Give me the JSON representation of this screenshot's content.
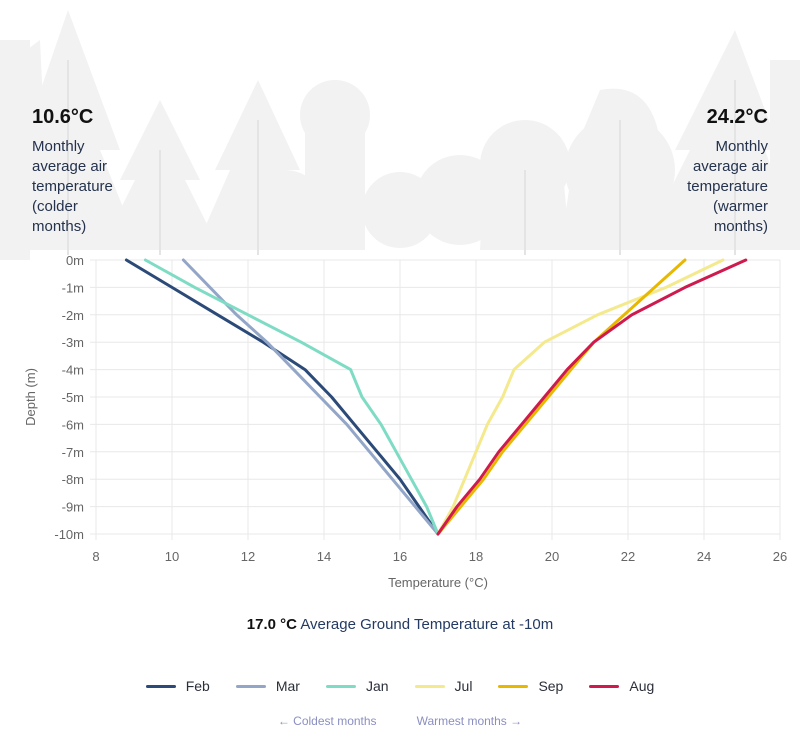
{
  "air_left": {
    "value": "10.6°C",
    "lines": [
      "Monthly",
      "average air",
      "temperature",
      "(colder",
      "months)"
    ]
  },
  "air_right": {
    "value": "24.2°C",
    "lines": [
      "Monthly",
      "average air",
      "temperature",
      "(warmer",
      "months)"
    ]
  },
  "caption": {
    "value": "17.0 °C",
    "text": "Average Ground Temperature at -10m"
  },
  "legend_notes": {
    "cold": "← Coldest months",
    "warm": "Warmest months →"
  },
  "colors": {
    "Feb": "#2b4a78",
    "Mar": "#93a6c8",
    "Jan": "#7fdcc4",
    "Jul": "#f4e98c",
    "Sep": "#e8b800",
    "Aug": "#cf1a4d",
    "grid": "#e8e8e8"
  },
  "chart_data": {
    "type": "line",
    "title": "",
    "xlabel": "Temperature (°C)",
    "ylabel": "Depth (m)",
    "xlim": [
      8,
      26
    ],
    "ylim": [
      -10,
      0
    ],
    "x_ticks": [
      "8",
      "10",
      "12",
      "14",
      "16",
      "18",
      "20",
      "22",
      "24",
      "26"
    ],
    "y_ticks": [
      "0m",
      "-1m",
      "-2m",
      "-3m",
      "-4m",
      "-5m",
      "-6m",
      "-7m",
      "-8m",
      "-9m",
      "-10m"
    ],
    "grid": true,
    "legend_position": "bottom",
    "series": [
      {
        "name": "Feb",
        "points": [
          [
            8.8,
            0
          ],
          [
            10.0,
            -1
          ],
          [
            11.2,
            -2
          ],
          [
            12.4,
            -3
          ],
          [
            13.5,
            -4
          ],
          [
            14.2,
            -5
          ],
          [
            14.8,
            -6
          ],
          [
            15.4,
            -7
          ],
          [
            16.0,
            -8
          ],
          [
            16.5,
            -9
          ],
          [
            17.0,
            -10
          ]
        ]
      },
      {
        "name": "Mar",
        "points": [
          [
            10.3,
            0
          ],
          [
            11.0,
            -1
          ],
          [
            11.7,
            -2
          ],
          [
            12.5,
            -3
          ],
          [
            13.2,
            -4
          ],
          [
            13.9,
            -5
          ],
          [
            14.6,
            -6
          ],
          [
            15.2,
            -7
          ],
          [
            15.8,
            -8
          ],
          [
            16.4,
            -9
          ],
          [
            17.0,
            -10
          ]
        ]
      },
      {
        "name": "Jan",
        "points": [
          [
            9.3,
            0
          ],
          [
            10.6,
            -1
          ],
          [
            12.0,
            -2
          ],
          [
            13.4,
            -3
          ],
          [
            14.7,
            -4
          ],
          [
            15.0,
            -5
          ],
          [
            15.5,
            -6
          ],
          [
            15.9,
            -7
          ],
          [
            16.3,
            -8
          ],
          [
            16.7,
            -9
          ],
          [
            17.0,
            -10
          ]
        ]
      },
      {
        "name": "Jul",
        "points": [
          [
            24.5,
            0
          ],
          [
            23.0,
            -1
          ],
          [
            21.2,
            -2
          ],
          [
            19.8,
            -3
          ],
          [
            19.0,
            -4
          ],
          [
            18.7,
            -5
          ],
          [
            18.3,
            -6
          ],
          [
            18.0,
            -7
          ],
          [
            17.7,
            -8
          ],
          [
            17.4,
            -9
          ],
          [
            17.0,
            -10
          ]
        ]
      },
      {
        "name": "Sep",
        "points": [
          [
            23.5,
            0
          ],
          [
            22.7,
            -1
          ],
          [
            21.9,
            -2
          ],
          [
            21.1,
            -3
          ],
          [
            20.5,
            -4
          ],
          [
            19.9,
            -5
          ],
          [
            19.3,
            -6
          ],
          [
            18.7,
            -7
          ],
          [
            18.2,
            -8
          ],
          [
            17.6,
            -9
          ],
          [
            17.0,
            -10
          ]
        ]
      },
      {
        "name": "Aug",
        "points": [
          [
            25.1,
            0
          ],
          [
            23.5,
            -1
          ],
          [
            22.1,
            -2
          ],
          [
            21.1,
            -3
          ],
          [
            20.4,
            -4
          ],
          [
            19.8,
            -5
          ],
          [
            19.2,
            -6
          ],
          [
            18.6,
            -7
          ],
          [
            18.1,
            -8
          ],
          [
            17.5,
            -9
          ],
          [
            17.0,
            -10
          ]
        ]
      }
    ]
  }
}
